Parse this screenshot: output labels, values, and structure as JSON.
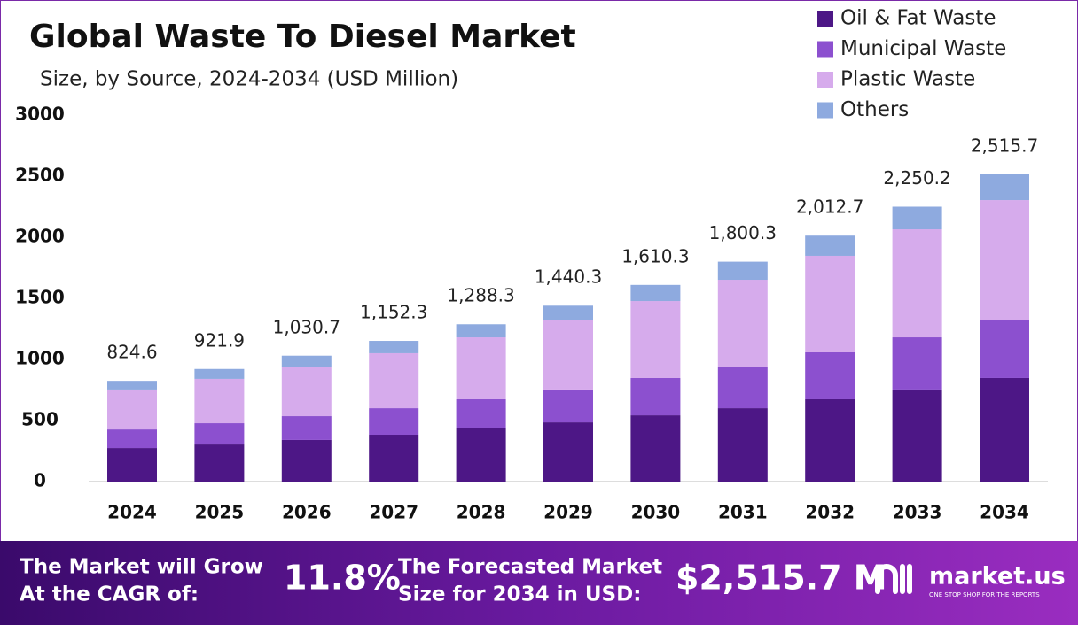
{
  "chart_data": {
    "type": "stacked-bar",
    "title": "Global Waste To Diesel Market",
    "subtitle": "Size, by Source, 2024-2034 (USD Million)",
    "categories": [
      "2024",
      "2025",
      "2026",
      "2027",
      "2028",
      "2029",
      "2030",
      "2031",
      "2032",
      "2033",
      "2034"
    ],
    "series": [
      {
        "name": "Oil & Fat Waste",
        "color": "#4d1786",
        "values": [
          275,
          304,
          341,
          384,
          435,
          485,
          543,
          601,
          674,
          754,
          848
        ]
      },
      {
        "name": "Municipal Waste",
        "color": "#8c50cf",
        "values": [
          152,
          174,
          195,
          217,
          239,
          269,
          305,
          341,
          384,
          427,
          478
        ]
      },
      {
        "name": "Plastic Waste",
        "color": "#d6abec",
        "values": [
          327,
          363,
          406,
          450,
          507,
          572,
          630,
          710,
          790,
          884,
          978
        ]
      },
      {
        "name": "Others",
        "color": "#8eaadf",
        "values": [
          71,
          81,
          89,
          101,
          107,
          114,
          132,
          148,
          165,
          185,
          212
        ]
      }
    ],
    "totals": {
      "values": [
        824.6,
        921.9,
        1030.7,
        1152.3,
        1288.3,
        1440.3,
        1610.3,
        1800.3,
        2012.7,
        2250.2,
        2515.7
      ],
      "value_labels": [
        "824.6",
        "921.9",
        "1,030.7",
        "1,152.3",
        "1,288.3",
        "1,440.3",
        "1,610.3",
        "1,800.3",
        "2,012.7",
        "2,250.2",
        "2,515.7"
      ]
    },
    "ylim": [
      0,
      3000
    ],
    "yticks": [
      0,
      500,
      1000,
      1500,
      2000,
      2500,
      3000
    ],
    "grid": false,
    "legend": "top-right"
  },
  "footer": {
    "cagr_text": [
      "The Market will Grow",
      "At the CAGR of:"
    ],
    "cagr_value": "11.8%",
    "forecast_text": [
      "The Forecasted Market",
      "Size for 2034 in USD:"
    ],
    "forecast_value": "$2,515.7 M",
    "brand": "market.us",
    "tagline": "ONE STOP SHOP FOR THE REPORTS"
  }
}
